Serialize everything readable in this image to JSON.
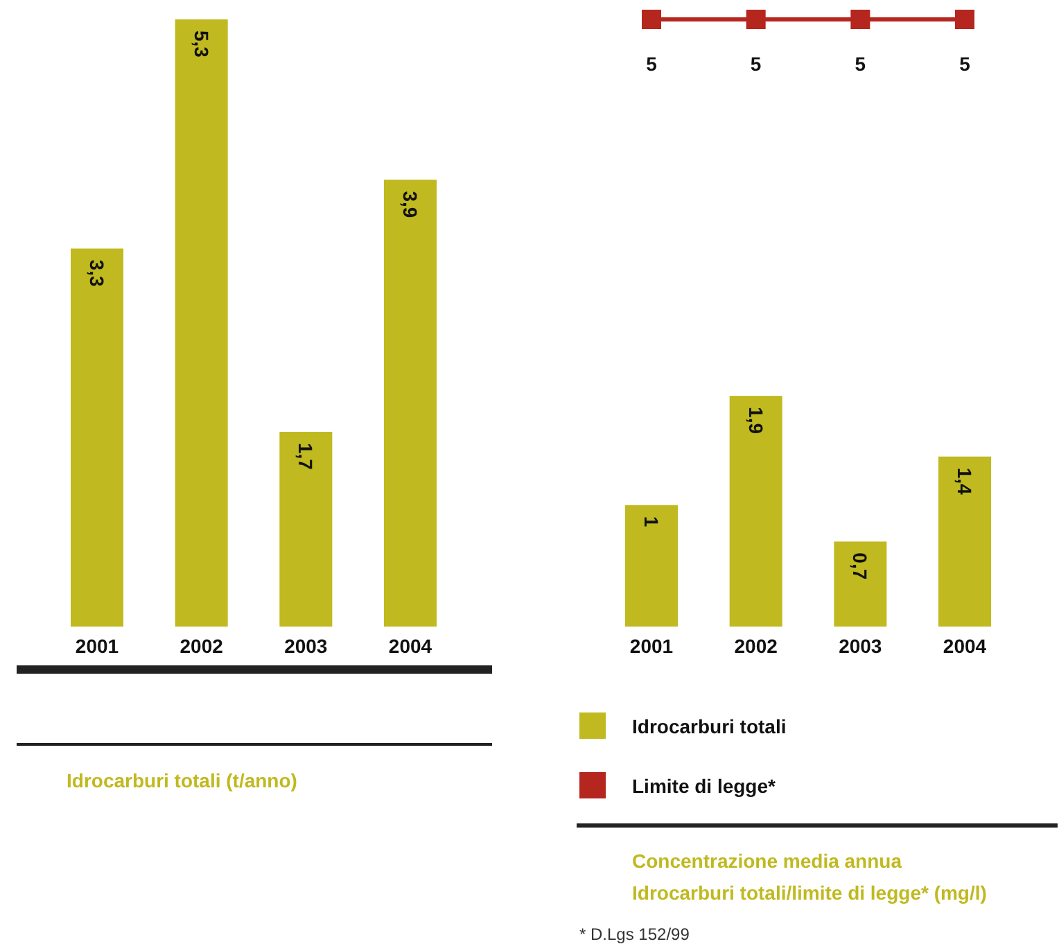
{
  "chart_data": [
    {
      "type": "bar",
      "title": "Idrocarburi totali (t/anno)",
      "categories": [
        "2001",
        "2002",
        "2003",
        "2004"
      ],
      "values": [
        3.3,
        5.3,
        1.7,
        3.9
      ],
      "value_labels": [
        "3,3",
        "5,3",
        "1,7",
        "3,9"
      ],
      "color": "#c0b920"
    },
    {
      "type": "bar",
      "title": "Concentrazione media annua\nIdrocarburi totali/limite di legge* (mg/l)",
      "categories": [
        "2001",
        "2002",
        "2003",
        "2004"
      ],
      "series": [
        {
          "name": "Idrocarburi totali",
          "color": "#c0b920",
          "values": [
            1,
            1.9,
            0.7,
            1.4
          ],
          "value_labels": [
            "1",
            "1,9",
            "0,7",
            "1,4"
          ]
        },
        {
          "name": "Limite di legge*",
          "type": "line",
          "color": "#b5261e",
          "marker": "square",
          "values": [
            5,
            5,
            5,
            5
          ],
          "value_labels": [
            "5",
            "5",
            "5",
            "5"
          ]
        }
      ],
      "legend": "bottom",
      "annotations": [
        "* D.Lgs 152/99"
      ]
    }
  ]
}
